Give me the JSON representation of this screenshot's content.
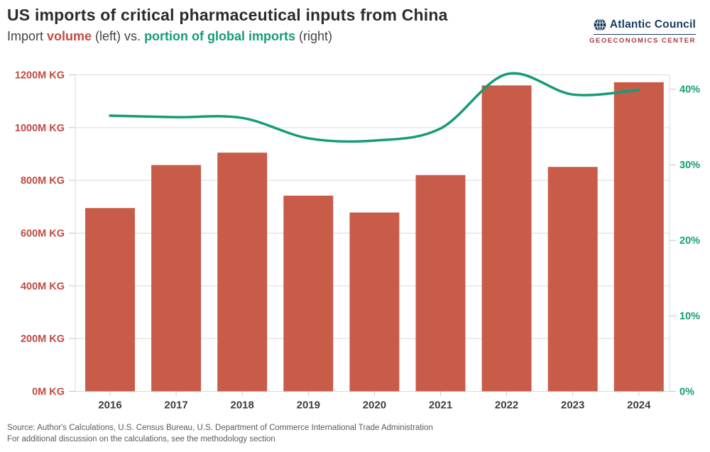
{
  "header": {
    "title": "US imports of critical pharmaceutical inputs from China",
    "subtitle": {
      "prefix": "Import ",
      "volume": "volume",
      "middle": " (left) vs. ",
      "portion": "portion of global imports",
      "suffix": " (right)"
    }
  },
  "logo": {
    "org": "Atlantic Council",
    "center": "GEOECONOMICS CENTER",
    "icon": "globe-icon"
  },
  "footer": {
    "source_line1": "Source: Author's Calculations, U.S. Census Bureau, U.S. Department of Commerce International Trade Administration",
    "source_line2": "For additional discussion on the calculations, see the methodology section"
  },
  "colors": {
    "bar": "#C85C49",
    "bar_label": "#C24B41",
    "line": "#149C77",
    "line_label": "#149C77",
    "title": "#2B2B2B",
    "subtitle_text": "#434343",
    "axis_text_dark": "#3D3D3D",
    "grid": "#D9D9D9",
    "tick": "#C4C4C4",
    "source_text": "#5A5A5A",
    "navy": "#17395E",
    "maroon": "#A23B40"
  },
  "chart_data": {
    "type": "combo",
    "categories": [
      "2016",
      "2017",
      "2018",
      "2019",
      "2020",
      "2021",
      "2022",
      "2023",
      "2024"
    ],
    "series": [
      {
        "name": "Import volume",
        "type": "bar",
        "axis": "left",
        "unit": "M KG",
        "values": [
          695,
          858,
          905,
          742,
          678,
          820,
          1160,
          851,
          1172
        ]
      },
      {
        "name": "Portion of global imports",
        "type": "line",
        "axis": "right",
        "unit": "%",
        "values": [
          36.5,
          36.3,
          36.2,
          33.5,
          33.2,
          34.8,
          42.0,
          39.3,
          39.9
        ]
      }
    ],
    "left_axis": {
      "ticks": [
        0,
        200,
        400,
        600,
        800,
        1000,
        1200
      ],
      "tick_labels": [
        "0M KG",
        "200M KG",
        "400M KG",
        "600M KG",
        "800M KG",
        "1000M KG",
        "1200M KG"
      ],
      "range": [
        0,
        1200
      ]
    },
    "right_axis": {
      "ticks": [
        0,
        10,
        20,
        30,
        40
      ],
      "tick_labels": [
        "0%",
        "10%",
        "20%",
        "30%",
        "40%"
      ],
      "range": [
        0,
        41.9
      ]
    },
    "grid": "horizontal-only",
    "legend": "encoded-in-subtitle"
  }
}
